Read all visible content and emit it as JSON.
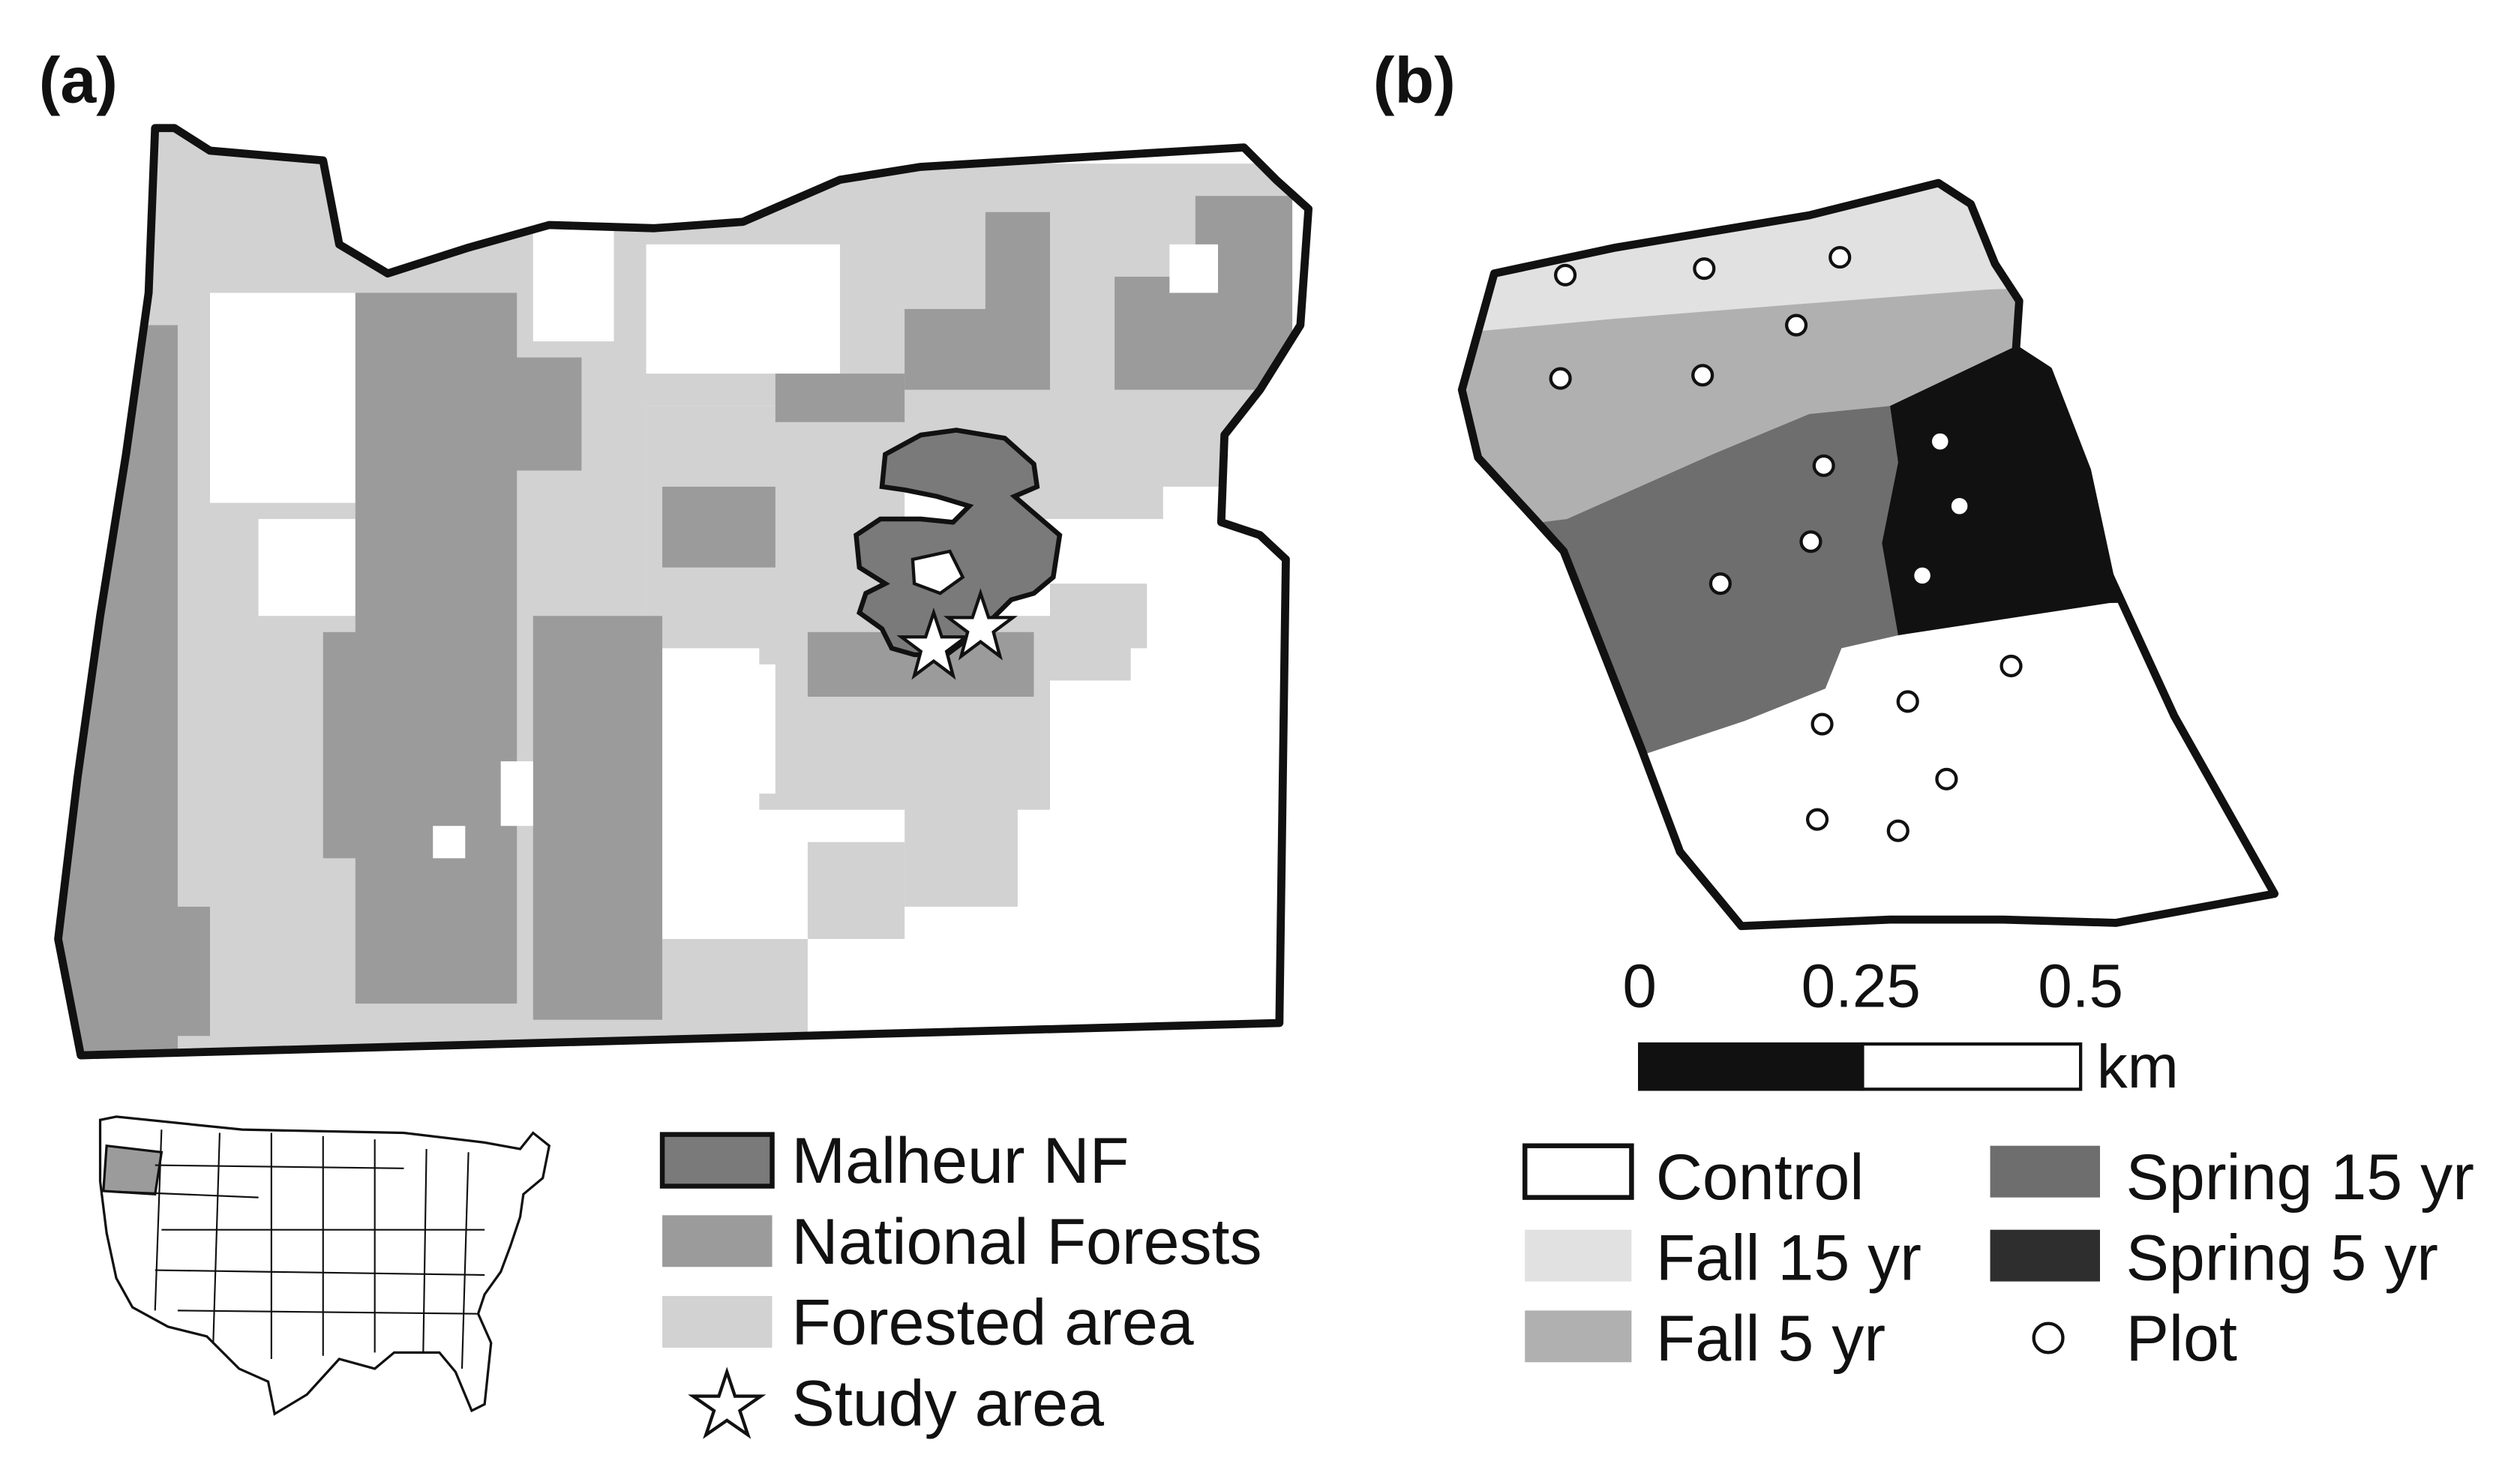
{
  "panel_a": {
    "label": "(a)",
    "legend": {
      "malheur": "Malheur NF",
      "national_forests": "National Forests",
      "forested_area": "Forested area",
      "study_area": "Study area"
    }
  },
  "panel_b": {
    "label": "(b)",
    "scale": {
      "ticks": [
        "0",
        "0.25",
        "0.5"
      ],
      "unit": "km"
    },
    "legend": {
      "control": "Control",
      "fall15": "Fall 15 yr",
      "fall5": "Fall 5 yr",
      "spring15": "Spring 15 yr",
      "spring5": "Spring 5 yr",
      "plot": "Plot"
    }
  },
  "colors": {
    "malheur": "#7a7a7a",
    "national_forests": "#9b9b9b",
    "forested_area": "#d2d2d2",
    "control": "#ffffff",
    "fall15": "#e1e1e1",
    "fall5": "#b0b0b0",
    "spring15": "#6e6e6e",
    "spring5": "#111111",
    "oregon_inset": "#9b9b9b"
  }
}
